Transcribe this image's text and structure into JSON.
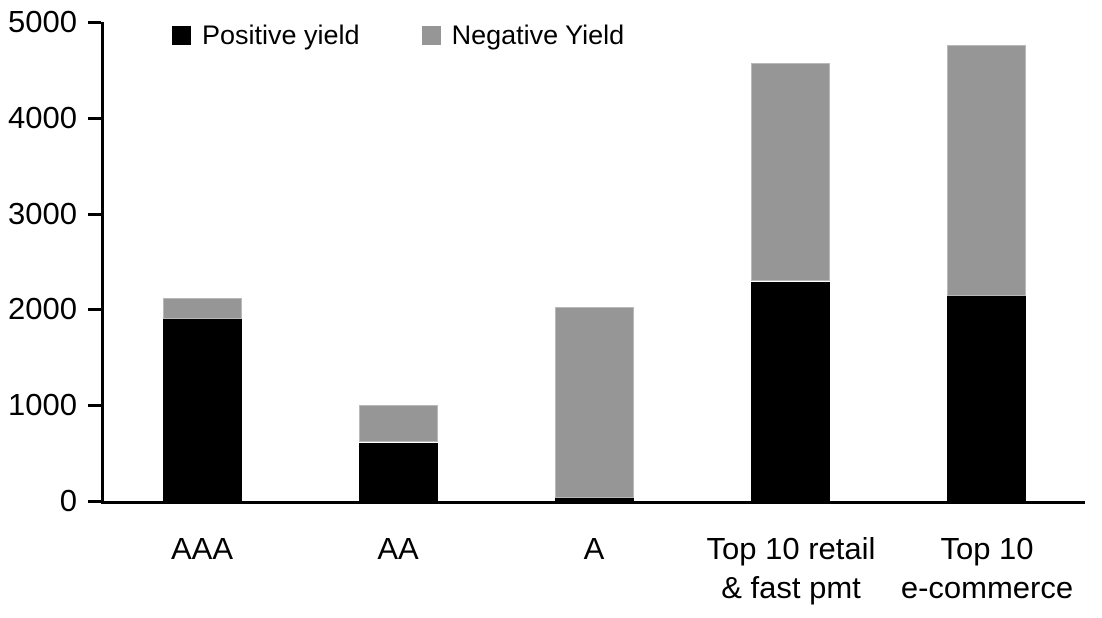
{
  "chart_data": {
    "type": "bar",
    "stacked": true,
    "categories": [
      "AAA",
      "AA",
      "A",
      "Top 10 retail\n& fast pmt",
      "Top 10\ne-commerce"
    ],
    "series": [
      {
        "name": "Positive yield",
        "color": "#000000",
        "values": [
          1900,
          610,
          40,
          2290,
          2140
        ]
      },
      {
        "name": "Negative Yield",
        "color": "#969696",
        "values": [
          220,
          390,
          1990,
          2280,
          2620
        ]
      }
    ],
    "ylim": [
      0,
      5000
    ],
    "yticks": [
      0,
      1000,
      2000,
      3000,
      4000,
      5000
    ],
    "grid": false,
    "legend_position": "top"
  }
}
